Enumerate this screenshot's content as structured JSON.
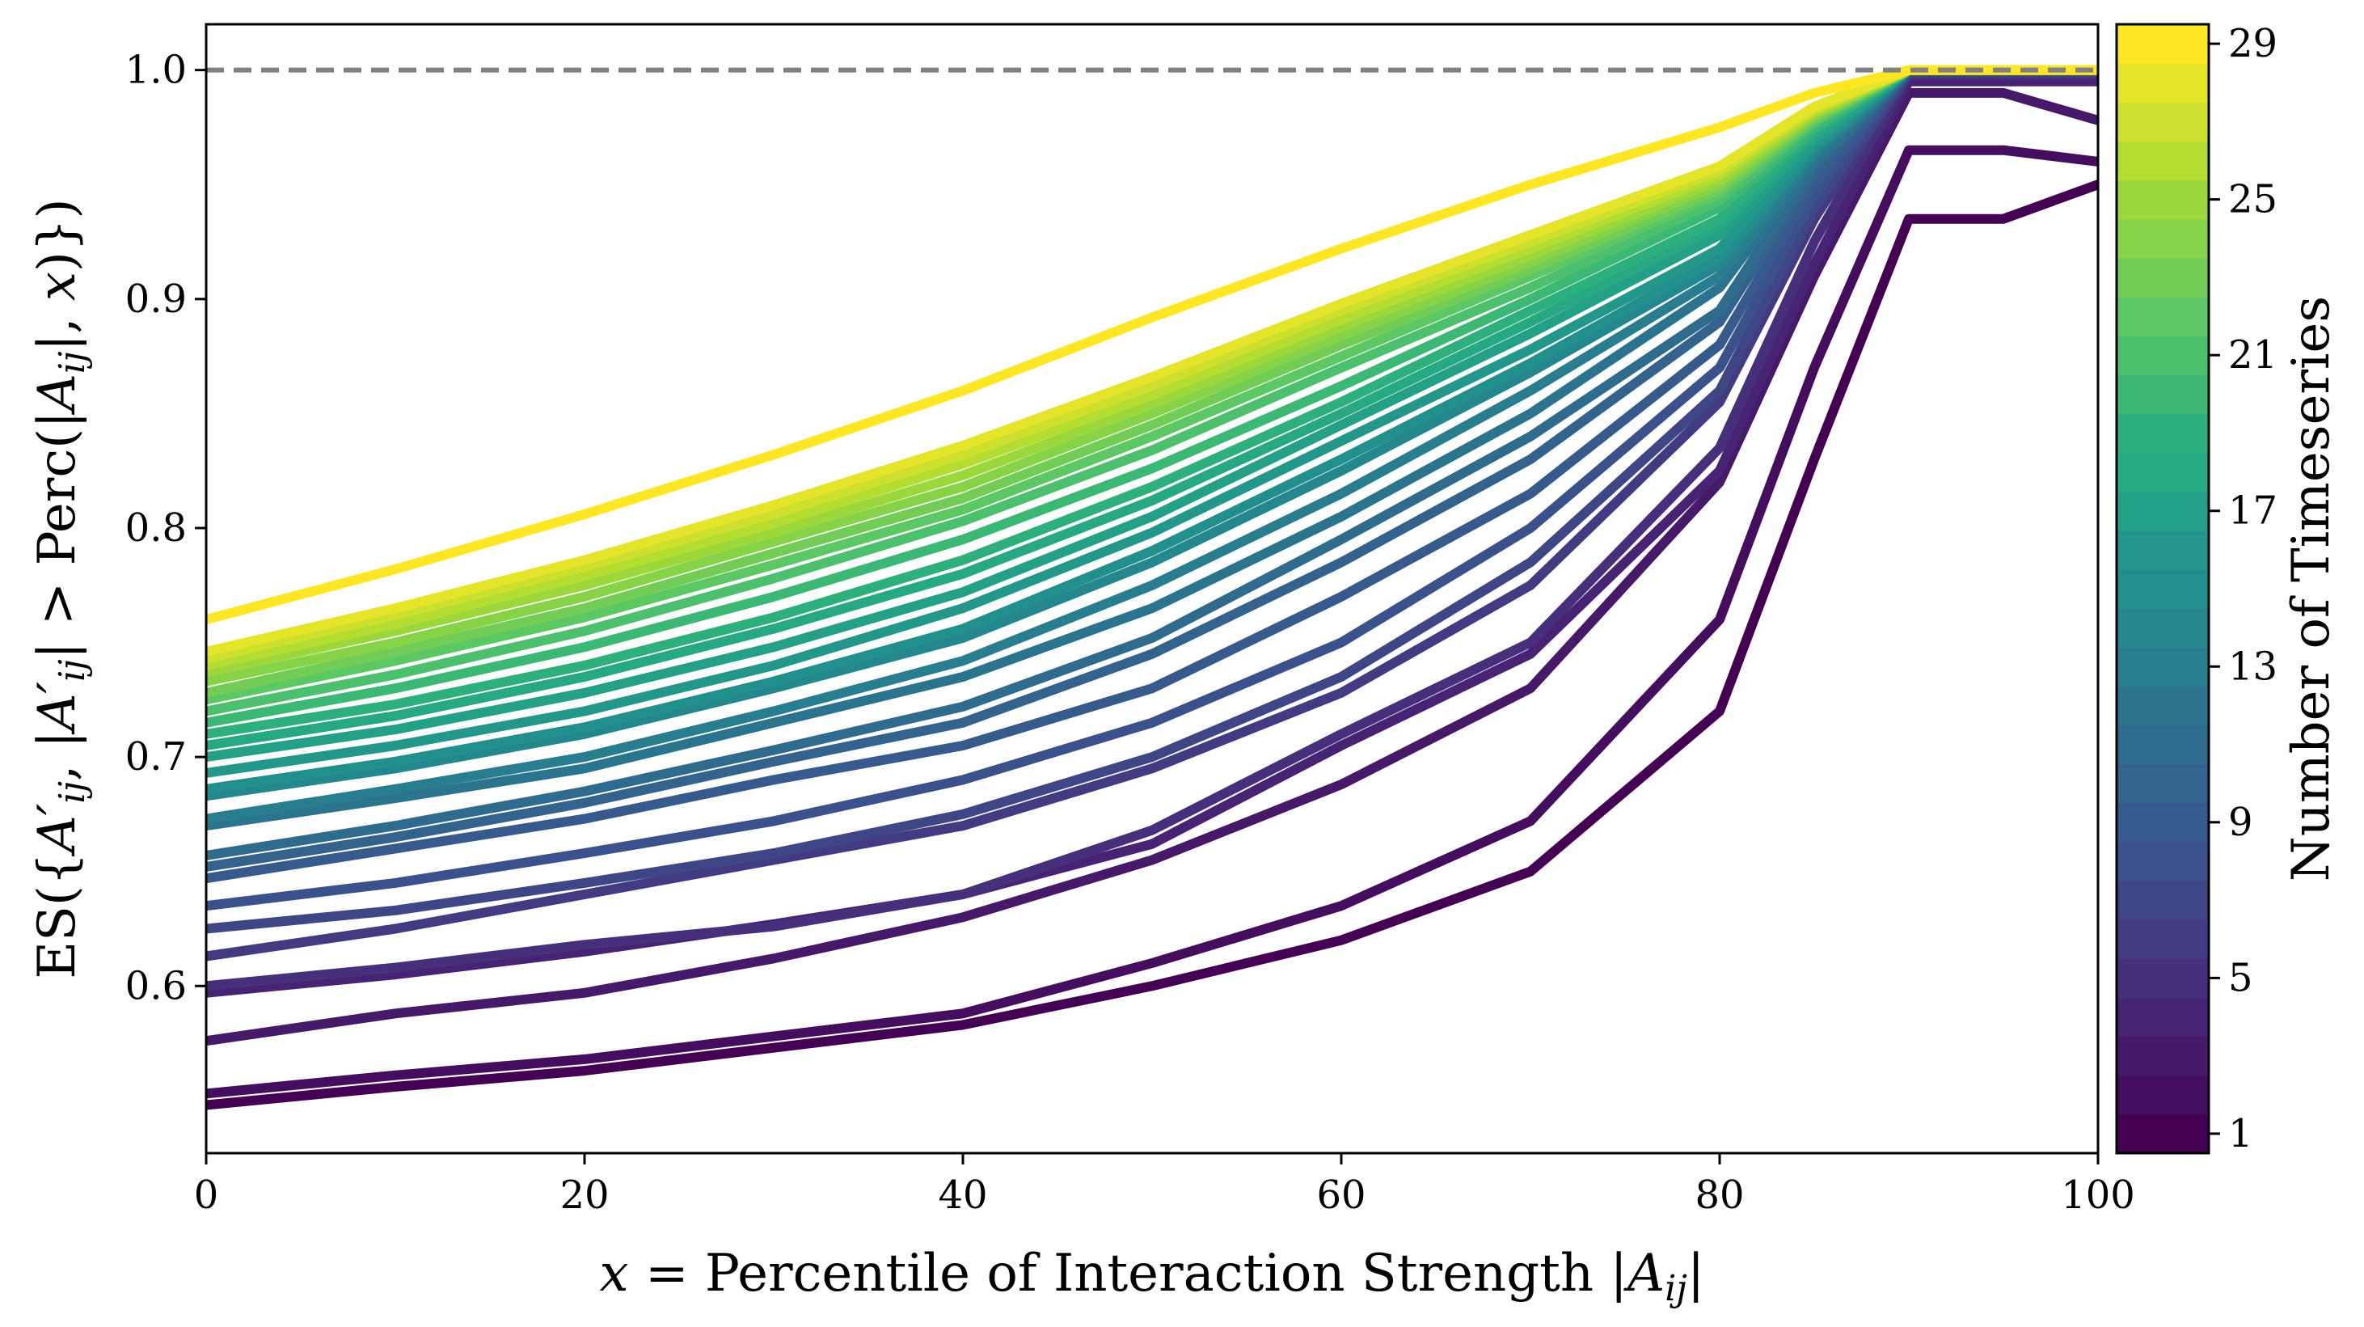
{
  "chart_data": {
    "type": "line",
    "xlabel": "x = Percentile of Interaction Strength |Aij|",
    "ylabel": "ES({A′ij, |A′ij| > Perc(|Aij|, x)})",
    "xlim": [
      0,
      100
    ],
    "ylim": [
      0.527,
      1.02
    ],
    "xticks": [
      "0",
      "20",
      "40",
      "60",
      "80",
      "100"
    ],
    "yticks": [
      "0.6",
      "0.7",
      "0.8",
      "0.9",
      "1.0"
    ],
    "reference_line": {
      "y": 1.0,
      "style": "dashed",
      "color": "#808080"
    },
    "colormap": "viridis",
    "colorbar": {
      "label": "Number of Timeseries",
      "range": [
        0.5,
        29.5
      ],
      "ticks": [
        "1",
        "5",
        "9",
        "13",
        "17",
        "21",
        "25",
        "29"
      ],
      "levels": 29
    },
    "grid": false,
    "x": [
      0,
      10,
      20,
      30,
      40,
      50,
      60,
      70,
      80,
      85,
      90,
      95,
      100
    ],
    "series": [
      {
        "timeseries": 1,
        "values": [
          0.548,
          0.556,
          0.563,
          0.573,
          0.583,
          0.6,
          0.62,
          0.65,
          0.72,
          0.83,
          0.935,
          0.935,
          0.95
        ]
      },
      {
        "timeseries": 2,
        "values": [
          0.553,
          0.561,
          0.568,
          0.578,
          0.588,
          0.61,
          0.635,
          0.672,
          0.76,
          0.87,
          0.965,
          0.965,
          0.96
        ]
      },
      {
        "timeseries": 3,
        "values": [
          0.576,
          0.588,
          0.597,
          0.612,
          0.63,
          0.655,
          0.688,
          0.73,
          0.82,
          0.91,
          0.99,
          0.99,
          0.978
        ]
      },
      {
        "timeseries": 4,
        "values": [
          0.597,
          0.605,
          0.615,
          0.627,
          0.64,
          0.662,
          0.705,
          0.745,
          0.825,
          0.915,
          0.995,
          0.995,
          0.995
        ]
      },
      {
        "timeseries": 5,
        "values": [
          0.6,
          0.608,
          0.618,
          0.626,
          0.64,
          0.668,
          0.71,
          0.75,
          0.835,
          0.925,
          0.998,
          0.998,
          0.998
        ]
      },
      {
        "timeseries": 6,
        "values": [
          0.613,
          0.625,
          0.64,
          0.655,
          0.67,
          0.695,
          0.728,
          0.775,
          0.855,
          0.935,
          0.999,
          0.999,
          0.999
        ]
      },
      {
        "timeseries": 7,
        "values": [
          0.625,
          0.633,
          0.645,
          0.658,
          0.675,
          0.7,
          0.735,
          0.785,
          0.86,
          0.94,
          0.999,
          0.999,
          0.999
        ]
      },
      {
        "timeseries": 8,
        "values": [
          0.635,
          0.645,
          0.658,
          0.672,
          0.69,
          0.715,
          0.75,
          0.8,
          0.87,
          0.945,
          1.0,
          1.0,
          1.0
        ]
      },
      {
        "timeseries": 9,
        "values": [
          0.647,
          0.66,
          0.673,
          0.69,
          0.705,
          0.73,
          0.77,
          0.815,
          0.88,
          0.95,
          1.0,
          1.0,
          1.0
        ]
      },
      {
        "timeseries": 10,
        "values": [
          0.652,
          0.665,
          0.68,
          0.698,
          0.715,
          0.745,
          0.785,
          0.83,
          0.89,
          0.955,
          1.0,
          1.0,
          1.0
        ]
      },
      {
        "timeseries": 11,
        "values": [
          0.657,
          0.67,
          0.685,
          0.703,
          0.722,
          0.752,
          0.795,
          0.84,
          0.895,
          0.958,
          1.0,
          1.0,
          1.0
        ]
      },
      {
        "timeseries": 12,
        "values": [
          0.67,
          0.682,
          0.695,
          0.715,
          0.735,
          0.765,
          0.805,
          0.85,
          0.905,
          0.96,
          1.0,
          1.0,
          1.0
        ]
      },
      {
        "timeseries": 13,
        "values": [
          0.673,
          0.686,
          0.7,
          0.72,
          0.742,
          0.775,
          0.815,
          0.86,
          0.91,
          0.963,
          1.0,
          1.0,
          1.0
        ]
      },
      {
        "timeseries": 14,
        "values": [
          0.683,
          0.695,
          0.71,
          0.73,
          0.752,
          0.785,
          0.825,
          0.868,
          0.915,
          0.965,
          1.0,
          1.0,
          1.0
        ]
      },
      {
        "timeseries": 15,
        "values": [
          0.686,
          0.698,
          0.713,
          0.733,
          0.756,
          0.79,
          0.83,
          0.872,
          0.918,
          0.966,
          1.0,
          1.0,
          1.0
        ]
      },
      {
        "timeseries": 16,
        "values": [
          0.693,
          0.705,
          0.72,
          0.74,
          0.765,
          0.798,
          0.838,
          0.878,
          0.922,
          0.968,
          1.0,
          1.0,
          1.0
        ]
      },
      {
        "timeseries": 17,
        "values": [
          0.7,
          0.712,
          0.728,
          0.748,
          0.772,
          0.805,
          0.845,
          0.885,
          0.928,
          0.97,
          1.0,
          1.0,
          1.0
        ]
      },
      {
        "timeseries": 18,
        "values": [
          0.705,
          0.718,
          0.735,
          0.756,
          0.78,
          0.812,
          0.85,
          0.89,
          0.932,
          0.972,
          1.0,
          1.0,
          1.0
        ]
      },
      {
        "timeseries": 19,
        "values": [
          0.71,
          0.723,
          0.74,
          0.761,
          0.786,
          0.818,
          0.855,
          0.895,
          0.935,
          0.974,
          1.0,
          1.0,
          1.0
        ]
      },
      {
        "timeseries": 20,
        "values": [
          0.715,
          0.73,
          0.748,
          0.77,
          0.795,
          0.826,
          0.862,
          0.9,
          0.94,
          0.975,
          1.0,
          1.0,
          1.0
        ]
      },
      {
        "timeseries": 21,
        "values": [
          0.72,
          0.736,
          0.755,
          0.778,
          0.803,
          0.834,
          0.87,
          0.905,
          0.943,
          0.977,
          1.0,
          1.0,
          1.0
        ]
      },
      {
        "timeseries": 22,
        "values": [
          0.725,
          0.742,
          0.761,
          0.784,
          0.808,
          0.84,
          0.875,
          0.91,
          0.946,
          0.978,
          1.0,
          1.0,
          1.0
        ]
      },
      {
        "timeseries": 23,
        "values": [
          0.728,
          0.746,
          0.765,
          0.789,
          0.813,
          0.845,
          0.88,
          0.913,
          0.948,
          0.979,
          1.0,
          1.0,
          1.0
        ]
      },
      {
        "timeseries": 24,
        "values": [
          0.733,
          0.75,
          0.77,
          0.794,
          0.818,
          0.85,
          0.884,
          0.916,
          0.95,
          0.98,
          1.0,
          1.0,
          1.0
        ]
      },
      {
        "timeseries": 25,
        "values": [
          0.737,
          0.755,
          0.775,
          0.798,
          0.823,
          0.854,
          0.888,
          0.919,
          0.952,
          0.981,
          1.0,
          1.0,
          1.0
        ]
      },
      {
        "timeseries": 26,
        "values": [
          0.74,
          0.758,
          0.779,
          0.802,
          0.828,
          0.858,
          0.891,
          0.922,
          0.954,
          0.982,
          1.0,
          1.0,
          1.0
        ]
      },
      {
        "timeseries": 27,
        "values": [
          0.743,
          0.762,
          0.783,
          0.806,
          0.832,
          0.862,
          0.895,
          0.925,
          0.956,
          0.983,
          1.0,
          1.0,
          1.0
        ]
      },
      {
        "timeseries": 28,
        "values": [
          0.746,
          0.765,
          0.786,
          0.81,
          0.836,
          0.866,
          0.898,
          0.928,
          0.958,
          0.984,
          1.0,
          1.0,
          1.0
        ]
      },
      {
        "timeseries": 29,
        "values": [
          0.76,
          0.782,
          0.806,
          0.832,
          0.86,
          0.892,
          0.922,
          0.95,
          0.975,
          0.99,
          1.0,
          1.0,
          1.0
        ]
      }
    ]
  }
}
